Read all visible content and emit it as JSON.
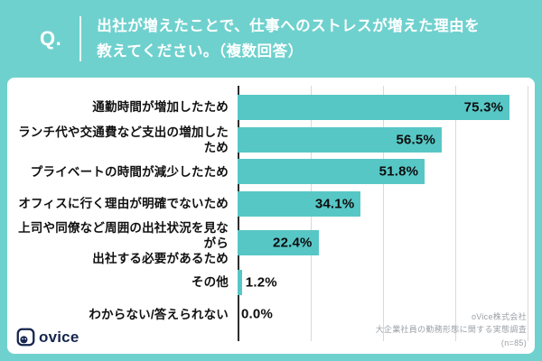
{
  "colors": {
    "page_teal": "#6FD1CE",
    "bar_teal": "#57C7C6",
    "axis_dark": "#2e2e2e",
    "gridline_gray": "#d9d9d9",
    "logo_navy": "#16254D",
    "source_gray": "#9aa0a6"
  },
  "header": {
    "q_label": "Q.",
    "question_lines": [
      "出社が増えたことで、仕事へのストレスが増えた理由を",
      "教えてください。（複数回答）"
    ]
  },
  "chart_data": {
    "type": "bar",
    "orientation": "horizontal",
    "title": "出社が増えたことで、仕事へのストレスが増えた理由を教えてください。（複数回答）",
    "categories": [
      [
        "通勤時間が増加したため"
      ],
      [
        "ランチ代や交通費など支出の増加したため"
      ],
      [
        "プライベートの時間が減少したため"
      ],
      [
        "オフィスに行く理由が明確でないため"
      ],
      [
        "上司や同僚など周囲の出社状況を見ながら",
        "出社する必要があるため"
      ],
      [
        "その他"
      ],
      [
        "わからない/答えられない"
      ]
    ],
    "values": [
      75.3,
      56.5,
      51.8,
      34.1,
      22.4,
      1.2,
      0.0
    ],
    "value_labels": [
      "75.3%",
      "56.5%",
      "51.8%",
      "34.1%",
      "22.4%",
      "1.2%",
      "0.0%"
    ],
    "xlabel": "",
    "ylabel": "",
    "xlim": [
      0,
      80
    ],
    "gridline_step": 20,
    "grid": true,
    "legend": false
  },
  "footer": {
    "logo_text": "ovice",
    "source_lines": [
      "oVice株式会社",
      "大企業社員の勤務形態に関する実態調査",
      "(n=85)"
    ]
  }
}
